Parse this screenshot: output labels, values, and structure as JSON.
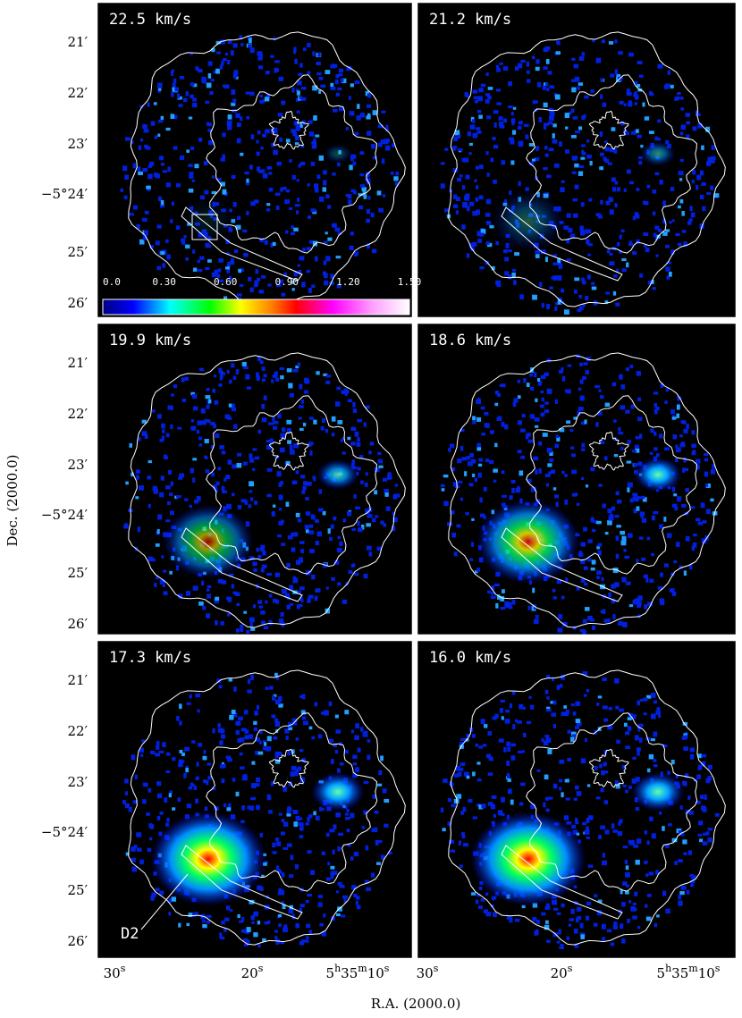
{
  "panels": [
    {
      "label": "22.5 km/s"
    },
    {
      "label": "21.2 km/s"
    },
    {
      "label": "19.9 km/s"
    },
    {
      "label": "18.6 km/s"
    },
    {
      "label": "17.3 km/s"
    },
    {
      "label": "16.0 km/s"
    }
  ],
  "colorbar": {
    "labels": [
      "0.0",
      "0.30",
      "0.60",
      "0.90",
      "1.20",
      "1.50"
    ]
  },
  "dec_ticks": [
    "21′",
    "22′",
    "23′",
    "−5°24′",
    "25′",
    "26′"
  ],
  "ra_ticks": [
    [
      {
        "text": "30",
        "sup": false
      },
      {
        "text": "s",
        "sup": true
      }
    ],
    [
      {
        "text": "20",
        "sup": false
      },
      {
        "text": "s",
        "sup": true
      }
    ],
    [
      {
        "text": "5",
        "sup": false
      },
      {
        "text": "h",
        "sup": true
      },
      {
        "text": "35",
        "sup": false
      },
      {
        "text": "m",
        "sup": true
      },
      {
        "text": "10",
        "sup": false
      },
      {
        "text": "s",
        "sup": true
      }
    ]
  ],
  "x_axis_title": "R.A. (2000.0)",
  "y_axis_title": "Dec. (2000.0)",
  "annotation": "D2"
}
